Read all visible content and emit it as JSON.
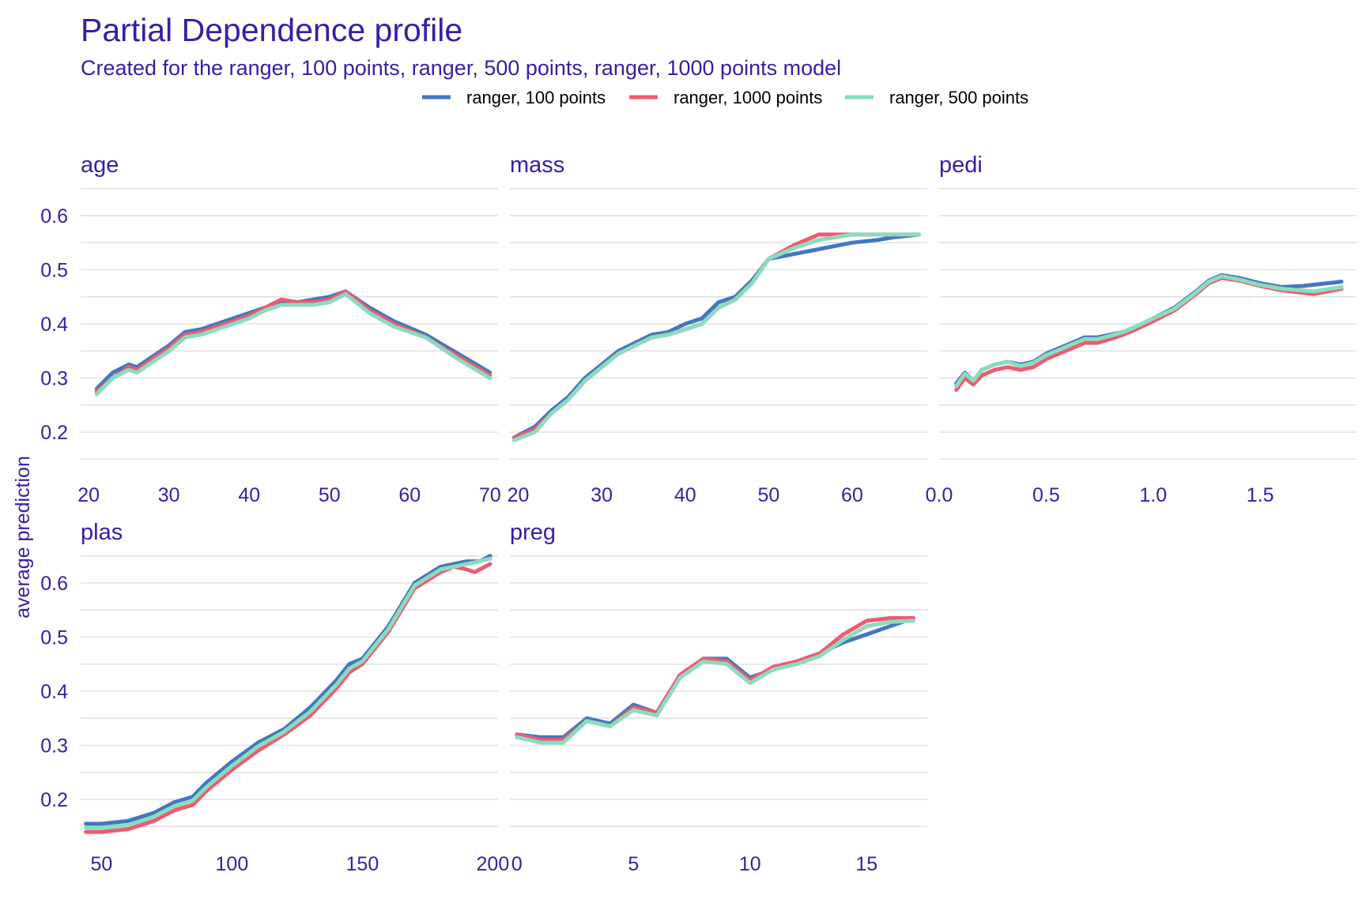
{
  "chart_data": {
    "type": "line",
    "title": "Partial Dependence profile",
    "subtitle": "Created for the ranger, 100 points, ranger, 500 points, ranger, 1000 points model",
    "ylabel": "average prediction",
    "legend": {
      "position": "top",
      "entries": [
        {
          "name": "ranger, 100 points",
          "color": "#4378bf"
        },
        {
          "name": "ranger, 1000 points",
          "color": "#f05a71"
        },
        {
          "name": "ranger, 500 points",
          "color": "#8bdcbe"
        }
      ]
    },
    "ylim": [
      0.13,
      0.67
    ],
    "yticks": [
      0.2,
      0.3,
      0.4,
      0.5,
      0.6
    ],
    "grid": true,
    "panels": [
      {
        "name": "age",
        "xlim": [
          19,
          71
        ],
        "xticks": [
          20,
          30,
          40,
          50,
          60,
          70
        ],
        "xtick_labels": [
          "20",
          "30",
          "40",
          "50",
          "60",
          "70"
        ],
        "series": [
          {
            "name": "ranger, 100 points",
            "x": [
              21,
              23,
              25,
              26,
              28,
              30,
              32,
              34,
              36,
              38,
              40,
              42,
              44,
              46,
              48,
              50,
              52,
              55,
              58,
              62,
              66,
              70
            ],
            "y": [
              0.28,
              0.31,
              0.325,
              0.32,
              0.34,
              0.36,
              0.385,
              0.39,
              0.4,
              0.41,
              0.42,
              0.43,
              0.44,
              0.44,
              0.445,
              0.45,
              0.46,
              0.43,
              0.405,
              0.38,
              0.345,
              0.31
            ]
          },
          {
            "name": "ranger, 1000 points",
            "x": [
              21,
              23,
              25,
              26,
              28,
              30,
              32,
              34,
              36,
              38,
              40,
              42,
              44,
              46,
              48,
              50,
              52,
              55,
              58,
              62,
              66,
              70
            ],
            "y": [
              0.275,
              0.3,
              0.32,
              0.315,
              0.335,
              0.355,
              0.38,
              0.385,
              0.395,
              0.405,
              0.415,
              0.43,
              0.445,
              0.44,
              0.44,
              0.445,
              0.46,
              0.425,
              0.4,
              0.375,
              0.34,
              0.305
            ]
          },
          {
            "name": "ranger, 500 points",
            "x": [
              21,
              23,
              25,
              26,
              28,
              30,
              32,
              34,
              36,
              38,
              40,
              42,
              44,
              46,
              48,
              50,
              52,
              55,
              58,
              62,
              66,
              70
            ],
            "y": [
              0.27,
              0.3,
              0.315,
              0.31,
              0.33,
              0.35,
              0.375,
              0.38,
              0.39,
              0.4,
              0.41,
              0.425,
              0.435,
              0.435,
              0.435,
              0.44,
              0.455,
              0.42,
              0.395,
              0.375,
              0.335,
              0.3
            ]
          }
        ]
      },
      {
        "name": "mass",
        "xlim": [
          19,
          69
        ],
        "xticks": [
          20,
          30,
          40,
          50,
          60
        ],
        "xtick_labels": [
          "20",
          "30",
          "40",
          "50",
          "60"
        ],
        "series": [
          {
            "name": "ranger, 100 points",
            "x": [
              19.5,
              22,
              24,
              26,
              28,
              30,
              32,
              34,
              36,
              38,
              40,
              42,
              44,
              46,
              48,
              50,
              55,
              60,
              63,
              65,
              68
            ],
            "y": [
              0.19,
              0.21,
              0.24,
              0.265,
              0.3,
              0.325,
              0.35,
              0.365,
              0.38,
              0.385,
              0.4,
              0.41,
              0.44,
              0.45,
              0.48,
              0.52,
              0.535,
              0.55,
              0.555,
              0.56,
              0.565
            ]
          },
          {
            "name": "ranger, 1000 points",
            "x": [
              19.5,
              22,
              24,
              26,
              28,
              30,
              32,
              34,
              36,
              38,
              40,
              42,
              44,
              46,
              48,
              50,
              53,
              56,
              60,
              65,
              68
            ],
            "y": [
              0.19,
              0.205,
              0.235,
              0.26,
              0.295,
              0.32,
              0.345,
              0.36,
              0.375,
              0.38,
              0.39,
              0.4,
              0.43,
              0.445,
              0.475,
              0.52,
              0.545,
              0.565,
              0.565,
              0.565,
              0.565
            ]
          },
          {
            "name": "ranger, 500 points",
            "x": [
              19.5,
              22,
              24,
              26,
              28,
              30,
              32,
              34,
              36,
              38,
              40,
              42,
              44,
              46,
              48,
              50,
              53,
              56,
              60,
              65,
              68
            ],
            "y": [
              0.185,
              0.2,
              0.235,
              0.26,
              0.295,
              0.32,
              0.345,
              0.36,
              0.375,
              0.38,
              0.39,
              0.4,
              0.43,
              0.445,
              0.475,
              0.52,
              0.54,
              0.555,
              0.565,
              0.565,
              0.565
            ]
          }
        ]
      },
      {
        "name": "pedi",
        "xlim": [
          0,
          1.95
        ],
        "xticks": [
          0.0,
          0.5,
          1.0,
          1.5
        ],
        "xtick_labels": [
          "0.0",
          "0.5",
          "1.0",
          "1.5"
        ],
        "series": [
          {
            "name": "ranger, 100 points",
            "x": [
              0.08,
              0.12,
              0.16,
              0.2,
              0.26,
              0.32,
              0.38,
              0.44,
              0.5,
              0.56,
              0.62,
              0.68,
              0.74,
              0.8,
              0.86,
              0.92,
              1.0,
              1.1,
              1.2,
              1.26,
              1.32,
              1.4,
              1.5,
              1.6,
              1.7,
              1.88
            ],
            "y": [
              0.29,
              0.31,
              0.295,
              0.315,
              0.325,
              0.33,
              0.325,
              0.33,
              0.345,
              0.355,
              0.365,
              0.375,
              0.375,
              0.38,
              0.385,
              0.395,
              0.41,
              0.43,
              0.46,
              0.48,
              0.49,
              0.485,
              0.475,
              0.468,
              0.47,
              0.478
            ]
          },
          {
            "name": "ranger, 1000 points",
            "x": [
              0.08,
              0.12,
              0.16,
              0.2,
              0.26,
              0.32,
              0.38,
              0.44,
              0.5,
              0.56,
              0.62,
              0.68,
              0.74,
              0.8,
              0.86,
              0.92,
              1.0,
              1.1,
              1.2,
              1.26,
              1.32,
              1.4,
              1.5,
              1.6,
              1.75,
              1.88
            ],
            "y": [
              0.278,
              0.3,
              0.288,
              0.305,
              0.315,
              0.32,
              0.315,
              0.32,
              0.335,
              0.345,
              0.355,
              0.365,
              0.365,
              0.372,
              0.38,
              0.39,
              0.405,
              0.425,
              0.455,
              0.475,
              0.485,
              0.48,
              0.47,
              0.462,
              0.455,
              0.465
            ]
          },
          {
            "name": "ranger, 500 points",
            "x": [
              0.08,
              0.12,
              0.16,
              0.2,
              0.26,
              0.32,
              0.38,
              0.44,
              0.5,
              0.56,
              0.62,
              0.68,
              0.74,
              0.8,
              0.86,
              0.92,
              1.0,
              1.1,
              1.2,
              1.26,
              1.32,
              1.4,
              1.5,
              1.6,
              1.75,
              1.88
            ],
            "y": [
              0.285,
              0.308,
              0.295,
              0.315,
              0.325,
              0.33,
              0.322,
              0.328,
              0.342,
              0.352,
              0.362,
              0.372,
              0.372,
              0.378,
              0.385,
              0.395,
              0.41,
              0.428,
              0.458,
              0.478,
              0.488,
              0.482,
              0.472,
              0.465,
              0.46,
              0.468
            ]
          }
        ]
      },
      {
        "name": "plas",
        "xlim": [
          42,
          202
        ],
        "xticks": [
          50,
          100,
          150,
          200
        ],
        "xtick_labels": [
          "50",
          "100",
          "150",
          "200"
        ],
        "series": [
          {
            "name": "ranger, 100 points",
            "x": [
              44,
              50,
              60,
              70,
              78,
              85,
              90,
              100,
              110,
              120,
              130,
              140,
              145,
              150,
              160,
              170,
              180,
              190,
              195,
              199
            ],
            "y": [
              0.155,
              0.155,
              0.16,
              0.175,
              0.195,
              0.205,
              0.23,
              0.27,
              0.305,
              0.33,
              0.37,
              0.42,
              0.45,
              0.46,
              0.52,
              0.6,
              0.63,
              0.64,
              0.64,
              0.65
            ]
          },
          {
            "name": "ranger, 1000 points",
            "x": [
              44,
              50,
              60,
              70,
              78,
              85,
              90,
              100,
              110,
              120,
              130,
              140,
              145,
              150,
              160,
              170,
              180,
              185,
              190,
              193,
              197,
              199
            ],
            "y": [
              0.14,
              0.14,
              0.145,
              0.16,
              0.18,
              0.19,
              0.215,
              0.255,
              0.29,
              0.32,
              0.355,
              0.405,
              0.435,
              0.45,
              0.51,
              0.59,
              0.62,
              0.63,
              0.625,
              0.62,
              0.63,
              0.635
            ]
          },
          {
            "name": "ranger, 500 points",
            "x": [
              44,
              50,
              60,
              70,
              78,
              85,
              90,
              100,
              110,
              120,
              130,
              140,
              145,
              150,
              160,
              170,
              180,
              190,
              195,
              199
            ],
            "y": [
              0.148,
              0.148,
              0.152,
              0.168,
              0.188,
              0.198,
              0.222,
              0.262,
              0.298,
              0.325,
              0.362,
              0.412,
              0.442,
              0.455,
              0.515,
              0.595,
              0.625,
              0.635,
              0.64,
              0.645
            ]
          }
        ]
      },
      {
        "name": "preg",
        "xlim": [
          -0.3,
          17.6
        ],
        "xticks": [
          0,
          5,
          10,
          15
        ],
        "xtick_labels": [
          "0",
          "5",
          "10",
          "15"
        ],
        "series": [
          {
            "name": "ranger, 100 points",
            "x": [
              0,
              1,
              2,
              3,
              4,
              5,
              6,
              7,
              8,
              9,
              10,
              11,
              12,
              13,
              14,
              15,
              16,
              17
            ],
            "y": [
              0.32,
              0.315,
              0.315,
              0.35,
              0.34,
              0.375,
              0.36,
              0.43,
              0.46,
              0.46,
              0.425,
              0.44,
              0.455,
              0.47,
              0.49,
              0.505,
              0.52,
              0.535
            ]
          },
          {
            "name": "ranger, 1000 points",
            "x": [
              0,
              1,
              2,
              3,
              4,
              5,
              6,
              7,
              8,
              9,
              10,
              11,
              12,
              13,
              14,
              15,
              16,
              17
            ],
            "y": [
              0.32,
              0.31,
              0.31,
              0.345,
              0.335,
              0.37,
              0.36,
              0.43,
              0.46,
              0.455,
              0.42,
              0.445,
              0.455,
              0.47,
              0.505,
              0.53,
              0.535,
              0.535
            ]
          },
          {
            "name": "ranger, 500 points",
            "x": [
              0,
              1,
              2,
              3,
              4,
              5,
              6,
              7,
              8,
              9,
              10,
              11,
              12,
              13,
              14,
              15,
              16,
              17
            ],
            "y": [
              0.315,
              0.305,
              0.305,
              0.345,
              0.335,
              0.365,
              0.355,
              0.425,
              0.455,
              0.45,
              0.415,
              0.44,
              0.45,
              0.465,
              0.495,
              0.52,
              0.528,
              0.53
            ]
          }
        ]
      }
    ]
  }
}
